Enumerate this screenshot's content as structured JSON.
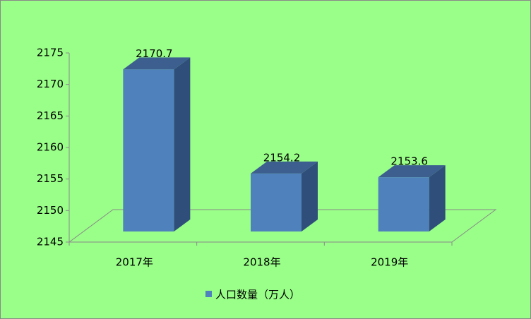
{
  "chart_data": {
    "type": "bar3d",
    "categories": [
      "2017年",
      "2018年",
      "2019年"
    ],
    "series": [
      {
        "name": "人口数量（万人）",
        "color": "#4f81bd",
        "values": [
          2170.7,
          2154.2,
          2153.6
        ]
      }
    ],
    "ylim": [
      2145,
      2175
    ],
    "yticks": [
      2145,
      2150,
      2155,
      2160,
      2165,
      2170,
      2175
    ],
    "legend": "bottom"
  }
}
